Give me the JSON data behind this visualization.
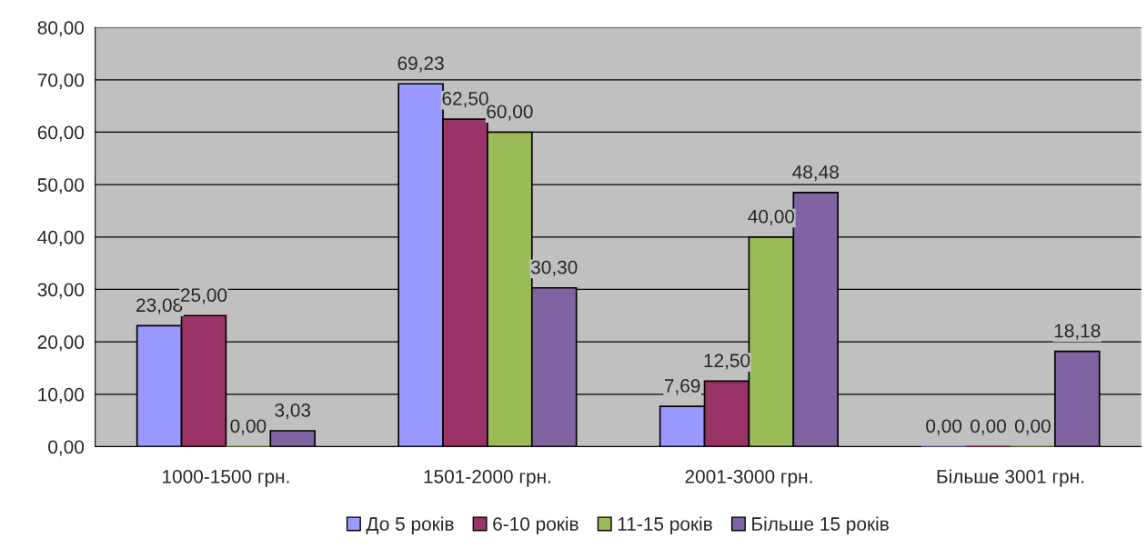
{
  "chart_data": {
    "type": "bar",
    "categories": [
      "1000-1500 грн.",
      "1501-2000 грн.",
      "2001-3000 грн.",
      "Більше 3001 грн."
    ],
    "series": [
      {
        "name": "До 5 років",
        "color": "#9999ff",
        "values": [
          23.08,
          69.23,
          7.69,
          0.0
        ],
        "value_labels": [
          "23,08",
          "69,23",
          "7,69",
          "0,00"
        ]
      },
      {
        "name": "6-10 років",
        "color": "#993366",
        "values": [
          25.0,
          62.5,
          12.5,
          0.0
        ],
        "value_labels": [
          "25,00",
          "62,50",
          "12,50",
          "0,00"
        ]
      },
      {
        "name": "11-15 років",
        "color": "#9bbb59",
        "values": [
          0.0,
          60.0,
          40.0,
          0.0
        ],
        "value_labels": [
          "0,00",
          "60,00",
          "40,00",
          "0,00"
        ]
      },
      {
        "name": "Більше 15 років",
        "color": "#8064a2",
        "values": [
          3.03,
          30.3,
          48.48,
          18.18
        ],
        "value_labels": [
          "3,03",
          "30,30",
          "48,48",
          "18,18"
        ]
      }
    ],
    "ylim": [
      0,
      80
    ],
    "yticks": [
      {
        "value": 0,
        "label": "0,00"
      },
      {
        "value": 10,
        "label": "10,00"
      },
      {
        "value": 20,
        "label": "20,00"
      },
      {
        "value": 30,
        "label": "30,00"
      },
      {
        "value": 40,
        "label": "40,00"
      },
      {
        "value": 50,
        "label": "50,00"
      },
      {
        "value": 60,
        "label": "60,00"
      },
      {
        "value": 70,
        "label": "70,00"
      },
      {
        "value": 80,
        "label": "80,00"
      }
    ],
    "grid": "y",
    "legend": "bottom"
  }
}
